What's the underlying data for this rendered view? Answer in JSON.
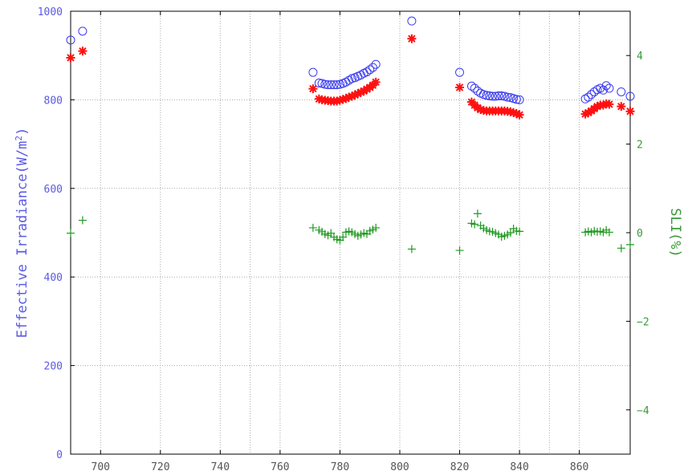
{
  "chart_data": {
    "type": "scatter",
    "xlabel": "",
    "ylabel_left": "Effective Irradiance(W/m²)",
    "ylabel_left_main": "Effective Irradiance(W/m",
    "ylabel_left_sup": "2",
    "ylabel_left_end": ")",
    "ylabel_right": "SLI(%)",
    "xlim": [
      690,
      877
    ],
    "ylim_left": [
      0,
      1000
    ],
    "ylim_right": [
      -5,
      5
    ],
    "x_ticks": [
      "700",
      "720",
      "740",
      "760",
      "780",
      "800",
      "820",
      "840",
      "860"
    ],
    "x_tick_values": [
      700,
      720,
      740,
      760,
      780,
      800,
      820,
      840,
      860
    ],
    "grid_x_values": [
      700,
      720,
      740,
      750,
      760,
      780,
      800,
      820,
      840,
      850,
      860
    ],
    "y_left_ticks": [
      "0",
      "200",
      "400",
      "600",
      "800",
      "1000"
    ],
    "y_left_tick_values": [
      0,
      200,
      400,
      600,
      800,
      1000
    ],
    "y_right_ticks": [
      "4",
      "2",
      "0",
      "−2",
      "−4"
    ],
    "y_right_tick_values": [
      4,
      2,
      0,
      -2,
      -4
    ],
    "grid": true,
    "series": [
      {
        "marker": "circle",
        "axis": "left",
        "color": "#3b3bef",
        "points": [
          [
            690,
            935
          ],
          [
            694,
            955
          ],
          [
            771,
            862
          ],
          [
            773,
            838
          ],
          [
            774,
            837
          ],
          [
            775,
            835
          ],
          [
            776,
            834
          ],
          [
            777,
            834
          ],
          [
            778,
            834
          ],
          [
            779,
            834
          ],
          [
            780,
            835
          ],
          [
            781,
            837
          ],
          [
            782,
            840
          ],
          [
            783,
            844
          ],
          [
            784,
            848
          ],
          [
            785,
            850
          ],
          [
            786,
            853
          ],
          [
            787,
            856
          ],
          [
            788,
            860
          ],
          [
            789,
            863
          ],
          [
            790,
            868
          ],
          [
            791,
            873
          ],
          [
            792,
            880
          ],
          [
            804,
            978
          ],
          [
            820,
            862
          ],
          [
            824,
            831
          ],
          [
            825,
            826
          ],
          [
            826,
            820
          ],
          [
            827,
            815
          ],
          [
            828,
            812
          ],
          [
            829,
            810
          ],
          [
            830,
            809
          ],
          [
            831,
            808
          ],
          [
            832,
            808
          ],
          [
            833,
            809
          ],
          [
            834,
            809
          ],
          [
            835,
            808
          ],
          [
            836,
            806
          ],
          [
            837,
            805
          ],
          [
            838,
            803
          ],
          [
            839,
            801
          ],
          [
            840,
            800
          ],
          [
            862,
            802
          ],
          [
            863,
            806
          ],
          [
            864,
            812
          ],
          [
            865,
            818
          ],
          [
            866,
            823
          ],
          [
            867,
            826
          ],
          [
            868,
            822
          ],
          [
            869,
            832
          ],
          [
            870,
            826
          ],
          [
            874,
            818
          ],
          [
            877,
            808
          ]
        ]
      },
      {
        "marker": "asterisk",
        "axis": "left",
        "color": "#ff1010",
        "points": [
          [
            690,
            895
          ],
          [
            694,
            910
          ],
          [
            771,
            825
          ],
          [
            773,
            802
          ],
          [
            774,
            800
          ],
          [
            775,
            799
          ],
          [
            776,
            798
          ],
          [
            777,
            797
          ],
          [
            778,
            797
          ],
          [
            779,
            797
          ],
          [
            780,
            799
          ],
          [
            781,
            801
          ],
          [
            782,
            803
          ],
          [
            783,
            806
          ],
          [
            784,
            808
          ],
          [
            785,
            811
          ],
          [
            786,
            814
          ],
          [
            787,
            817
          ],
          [
            788,
            820
          ],
          [
            789,
            824
          ],
          [
            790,
            828
          ],
          [
            791,
            833
          ],
          [
            792,
            840
          ],
          [
            804,
            938
          ],
          [
            820,
            828
          ],
          [
            824,
            795
          ],
          [
            825,
            788
          ],
          [
            826,
            782
          ],
          [
            827,
            778
          ],
          [
            828,
            776
          ],
          [
            829,
            775
          ],
          [
            830,
            775
          ],
          [
            831,
            775
          ],
          [
            832,
            775
          ],
          [
            833,
            775
          ],
          [
            834,
            775
          ],
          [
            835,
            775
          ],
          [
            836,
            774
          ],
          [
            837,
            773
          ],
          [
            838,
            771
          ],
          [
            839,
            769
          ],
          [
            840,
            766
          ],
          [
            862,
            768
          ],
          [
            863,
            771
          ],
          [
            864,
            775
          ],
          [
            865,
            780
          ],
          [
            866,
            785
          ],
          [
            867,
            788
          ],
          [
            868,
            788
          ],
          [
            869,
            791
          ],
          [
            870,
            790
          ],
          [
            874,
            785
          ],
          [
            877,
            774
          ]
        ]
      },
      {
        "marker": "plus",
        "axis": "right",
        "color": "#1f9a1f",
        "points": [
          [
            690,
            -0.01
          ],
          [
            694,
            0.28
          ],
          [
            771,
            0.11
          ],
          [
            773,
            0.06
          ],
          [
            774,
            0.02
          ],
          [
            775,
            -0.03
          ],
          [
            776,
            -0.06
          ],
          [
            777,
            -0.01
          ],
          [
            778,
            -0.1
          ],
          [
            779,
            -0.15
          ],
          [
            780,
            -0.17
          ],
          [
            781,
            -0.1
          ],
          [
            782,
            0.01
          ],
          [
            783,
            0.03
          ],
          [
            784,
            0.01
          ],
          [
            785,
            -0.03
          ],
          [
            786,
            -0.07
          ],
          [
            787,
            -0.04
          ],
          [
            788,
            -0.01
          ],
          [
            789,
            -0.03
          ],
          [
            790,
            0.04
          ],
          [
            791,
            0.07
          ],
          [
            792,
            0.11
          ],
          [
            804,
            -0.37
          ],
          [
            820,
            -0.4
          ],
          [
            824,
            0.21
          ],
          [
            825,
            0.19
          ],
          [
            826,
            0.43
          ],
          [
            827,
            0.16
          ],
          [
            828,
            0.1
          ],
          [
            829,
            0.06
          ],
          [
            830,
            0.03
          ],
          [
            831,
            0.02
          ],
          [
            832,
            -0.01
          ],
          [
            833,
            -0.04
          ],
          [
            834,
            -0.09
          ],
          [
            835,
            -0.07
          ],
          [
            836,
            -0.04
          ],
          [
            837,
            0.0
          ],
          [
            838,
            0.09
          ],
          [
            839,
            0.04
          ],
          [
            840,
            0.03
          ],
          [
            862,
            0.01
          ],
          [
            863,
            0.03
          ],
          [
            864,
            0.01
          ],
          [
            865,
            0.04
          ],
          [
            866,
            0.02
          ],
          [
            867,
            0.03
          ],
          [
            868,
            0.01
          ],
          [
            869,
            0.06
          ],
          [
            870,
            0.01
          ],
          [
            874,
            -0.35
          ],
          [
            877,
            -0.27
          ]
        ]
      }
    ]
  }
}
